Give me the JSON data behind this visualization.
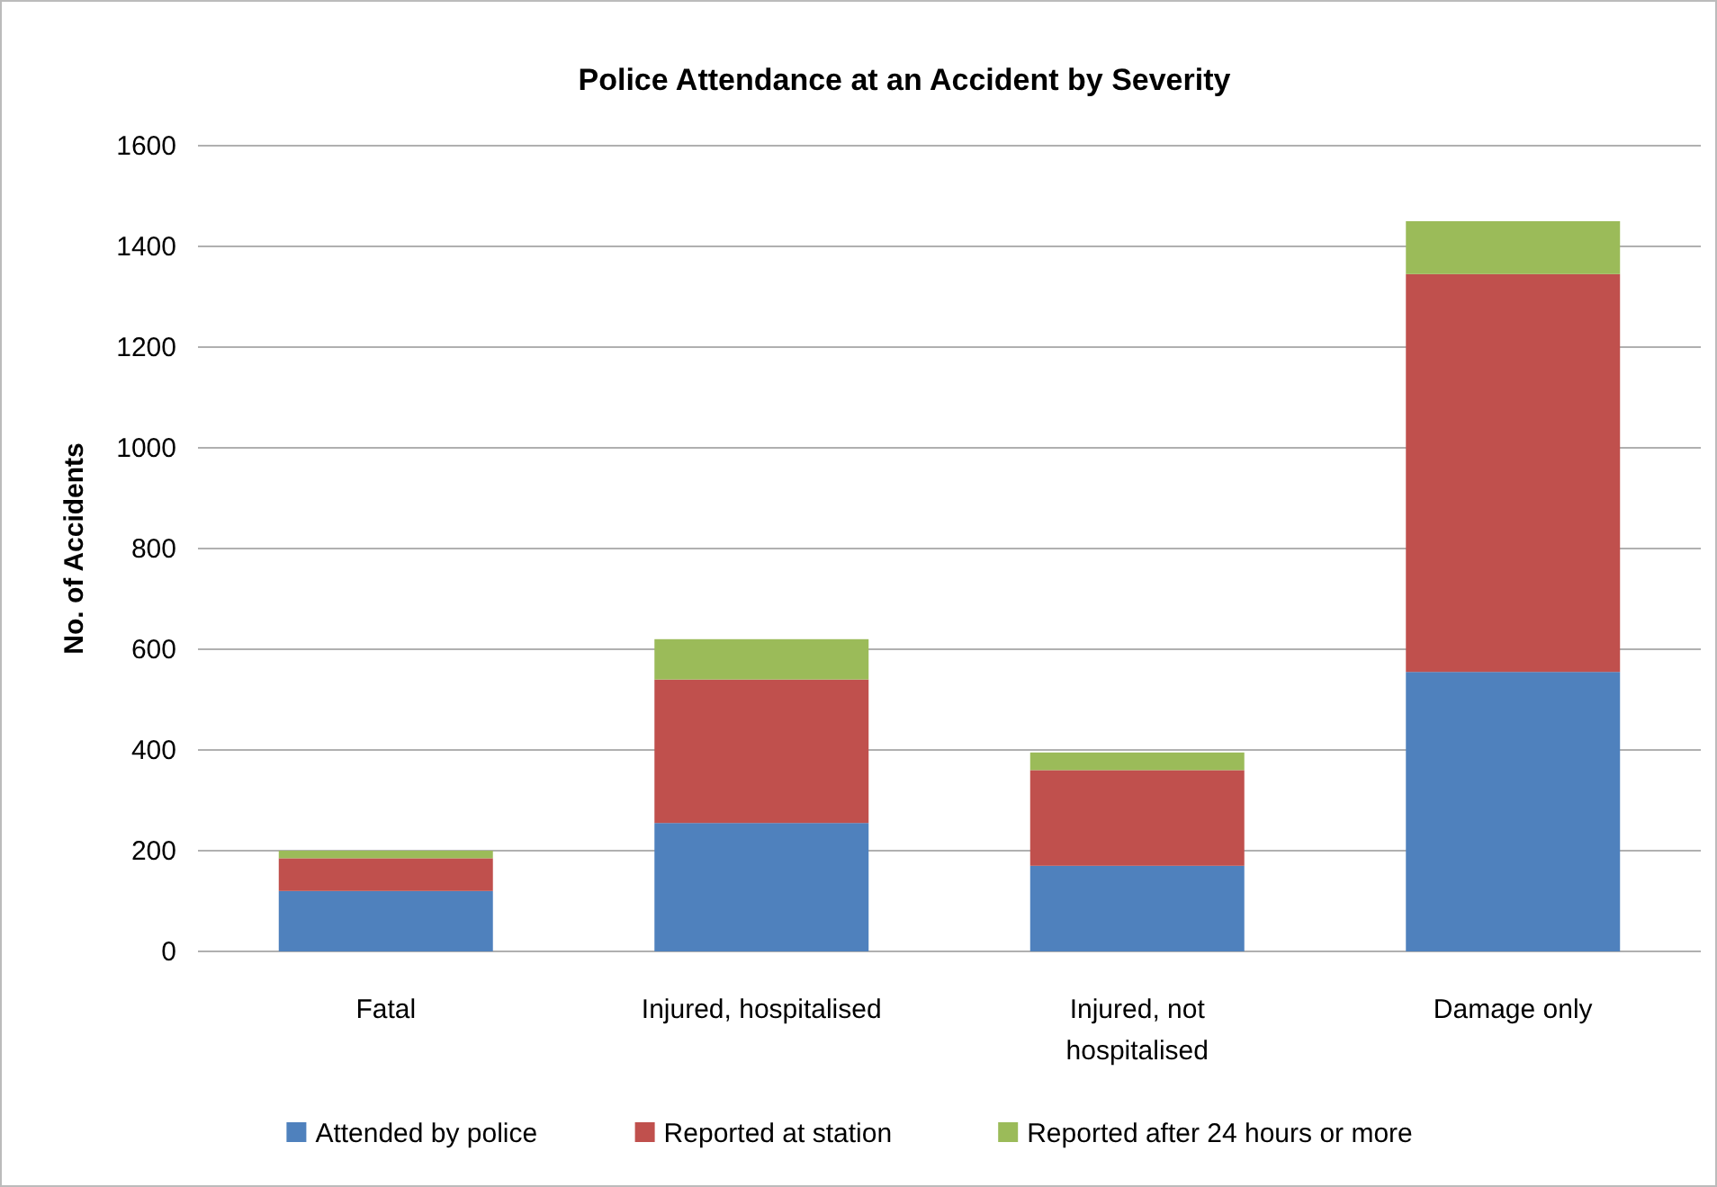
{
  "chart_data": {
    "type": "bar",
    "title": "Police Attendance at an Accident by Severity",
    "ylabel": "No. of Accidents",
    "categories": [
      "Fatal",
      "Injured, hospitalised",
      "Injured, not hospitalised",
      "Damage only"
    ],
    "series": [
      {
        "name": "Attended by police",
        "color": "#4f81bd",
        "values": [
          120,
          255,
          170,
          555
        ]
      },
      {
        "name": "Reported at station",
        "color": "#c0504d",
        "values": [
          65,
          285,
          190,
          790
        ]
      },
      {
        "name": "Reported after 24 hours or more",
        "color": "#9bbb59",
        "values": [
          15,
          80,
          35,
          105
        ]
      }
    ],
    "stacked": true,
    "ylim": [
      0,
      1600
    ],
    "yticks": [
      0,
      200,
      400,
      600,
      800,
      1000,
      1200,
      1400,
      1600
    ],
    "grid": "y",
    "legend": "bottom"
  }
}
